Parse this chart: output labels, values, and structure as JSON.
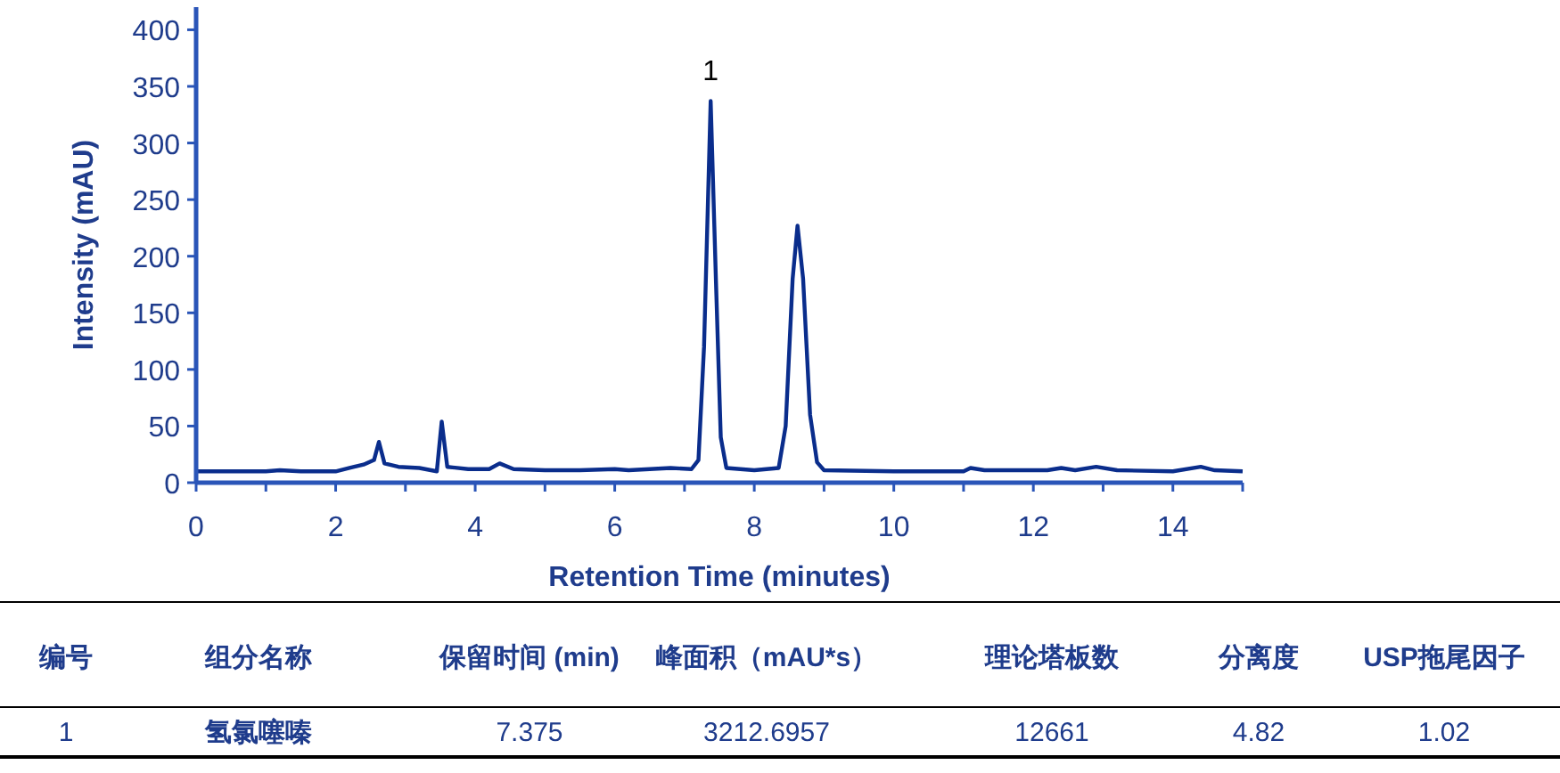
{
  "chart_data": [
    {
      "type": "line",
      "xlabel": "Retention Time (minutes)",
      "ylabel": "Intensity (mAU)",
      "xlim": [
        0,
        15
      ],
      "ylim": [
        0,
        420
      ],
      "xticks": [
        0,
        {
          "value": 1,
          "label": null
        },
        2,
        {
          "value": 3,
          "label": null
        },
        4,
        {
          "value": 5,
          "label": null
        },
        6,
        {
          "value": 7,
          "label": null
        },
        8,
        {
          "value": 9,
          "label": null
        },
        10,
        {
          "value": 11,
          "label": null
        },
        12,
        {
          "value": 13,
          "label": null
        },
        14,
        {
          "value": 15,
          "label": null
        }
      ],
      "yticks": [
        0,
        50,
        100,
        150,
        200,
        250,
        300,
        350,
        400
      ],
      "grid": false,
      "marker": "none",
      "line_style": "solid",
      "annotations": [
        {
          "text": "1",
          "x": 7.375,
          "y": 337
        }
      ],
      "series": [
        {
          "color": "#0a2d8c",
          "x": [
            0,
            1,
            1.2,
            1.5,
            2.0,
            2.2,
            2.4,
            2.55,
            2.62,
            2.7,
            2.9,
            3.2,
            3.45,
            3.52,
            3.6,
            3.9,
            4.2,
            4.35,
            4.55,
            5.0,
            5.5,
            6.0,
            6.2,
            6.8,
            7.1,
            7.2,
            7.28,
            7.375,
            7.45,
            7.52,
            7.6,
            8.0,
            8.35,
            8.45,
            8.55,
            8.62,
            8.7,
            8.8,
            8.9,
            9.0,
            10,
            11,
            11.1,
            11.3,
            12.2,
            12.4,
            12.6,
            12.9,
            13.2,
            14,
            14.4,
            14.6,
            15
          ],
          "values": [
            10,
            10,
            11,
            10,
            10,
            13,
            16,
            20,
            36,
            17,
            14,
            13,
            10,
            54,
            14,
            12,
            12,
            17,
            12,
            11,
            11,
            12,
            11,
            13,
            12,
            20,
            120,
            337,
            180,
            40,
            13,
            11,
            13,
            50,
            180,
            227,
            180,
            60,
            18,
            11,
            10,
            10,
            13,
            11,
            11,
            13,
            11,
            14,
            11,
            10,
            14,
            11,
            10
          ]
        }
      ]
    },
    {
      "type": "other",
      "annotations": [
        "编号",
        "组分名称",
        "保留时间 (min)",
        "峰面积（mAU*s）",
        "理论塔板数",
        "分离度",
        "USP拖尾因子",
        "1",
        "氢氯噻嗪",
        "7.375",
        "3212.6957",
        "12661",
        "4.82",
        "1.02"
      ]
    }
  ]
}
